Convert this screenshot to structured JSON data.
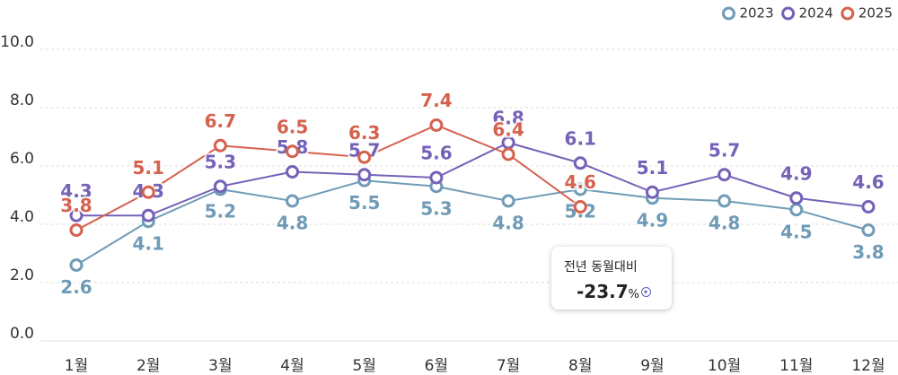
{
  "chart_data": {
    "type": "line",
    "categories": [
      "1월",
      "2월",
      "3월",
      "4월",
      "5월",
      "6월",
      "7월",
      "8월",
      "9월",
      "10월",
      "11월",
      "12월"
    ],
    "series": [
      {
        "name": "2023",
        "color": "#6f9bb6",
        "label_position": "below",
        "values": [
          2.6,
          4.1,
          5.2,
          4.8,
          5.5,
          5.3,
          4.8,
          5.2,
          4.9,
          4.8,
          4.5,
          3.8
        ]
      },
      {
        "name": "2024",
        "color": "#7561b7",
        "label_position": "above",
        "values": [
          4.3,
          4.3,
          5.3,
          5.8,
          5.7,
          5.6,
          6.8,
          6.1,
          5.1,
          5.7,
          4.9,
          4.6
        ]
      },
      {
        "name": "2025",
        "color": "#d6614e",
        "label_position": "above",
        "values": [
          3.8,
          5.1,
          6.7,
          6.5,
          6.3,
          7.4,
          6.4,
          4.6,
          null,
          null,
          null,
          null
        ]
      }
    ],
    "ylim": [
      0,
      10
    ],
    "yticks": [
      {
        "value": 0,
        "label": "0.0"
      },
      {
        "value": 2,
        "label": "2.0"
      },
      {
        "value": 4,
        "label": "4.0"
      },
      {
        "value": 6,
        "label": "6.0"
      },
      {
        "value": 8,
        "label": "8.0"
      },
      {
        "value": 10,
        "label": "10.0"
      }
    ],
    "grid": true,
    "legend": "top-right",
    "annotation": {
      "title": "전년 동월대비",
      "value": "-23.7",
      "unit": "%"
    }
  }
}
